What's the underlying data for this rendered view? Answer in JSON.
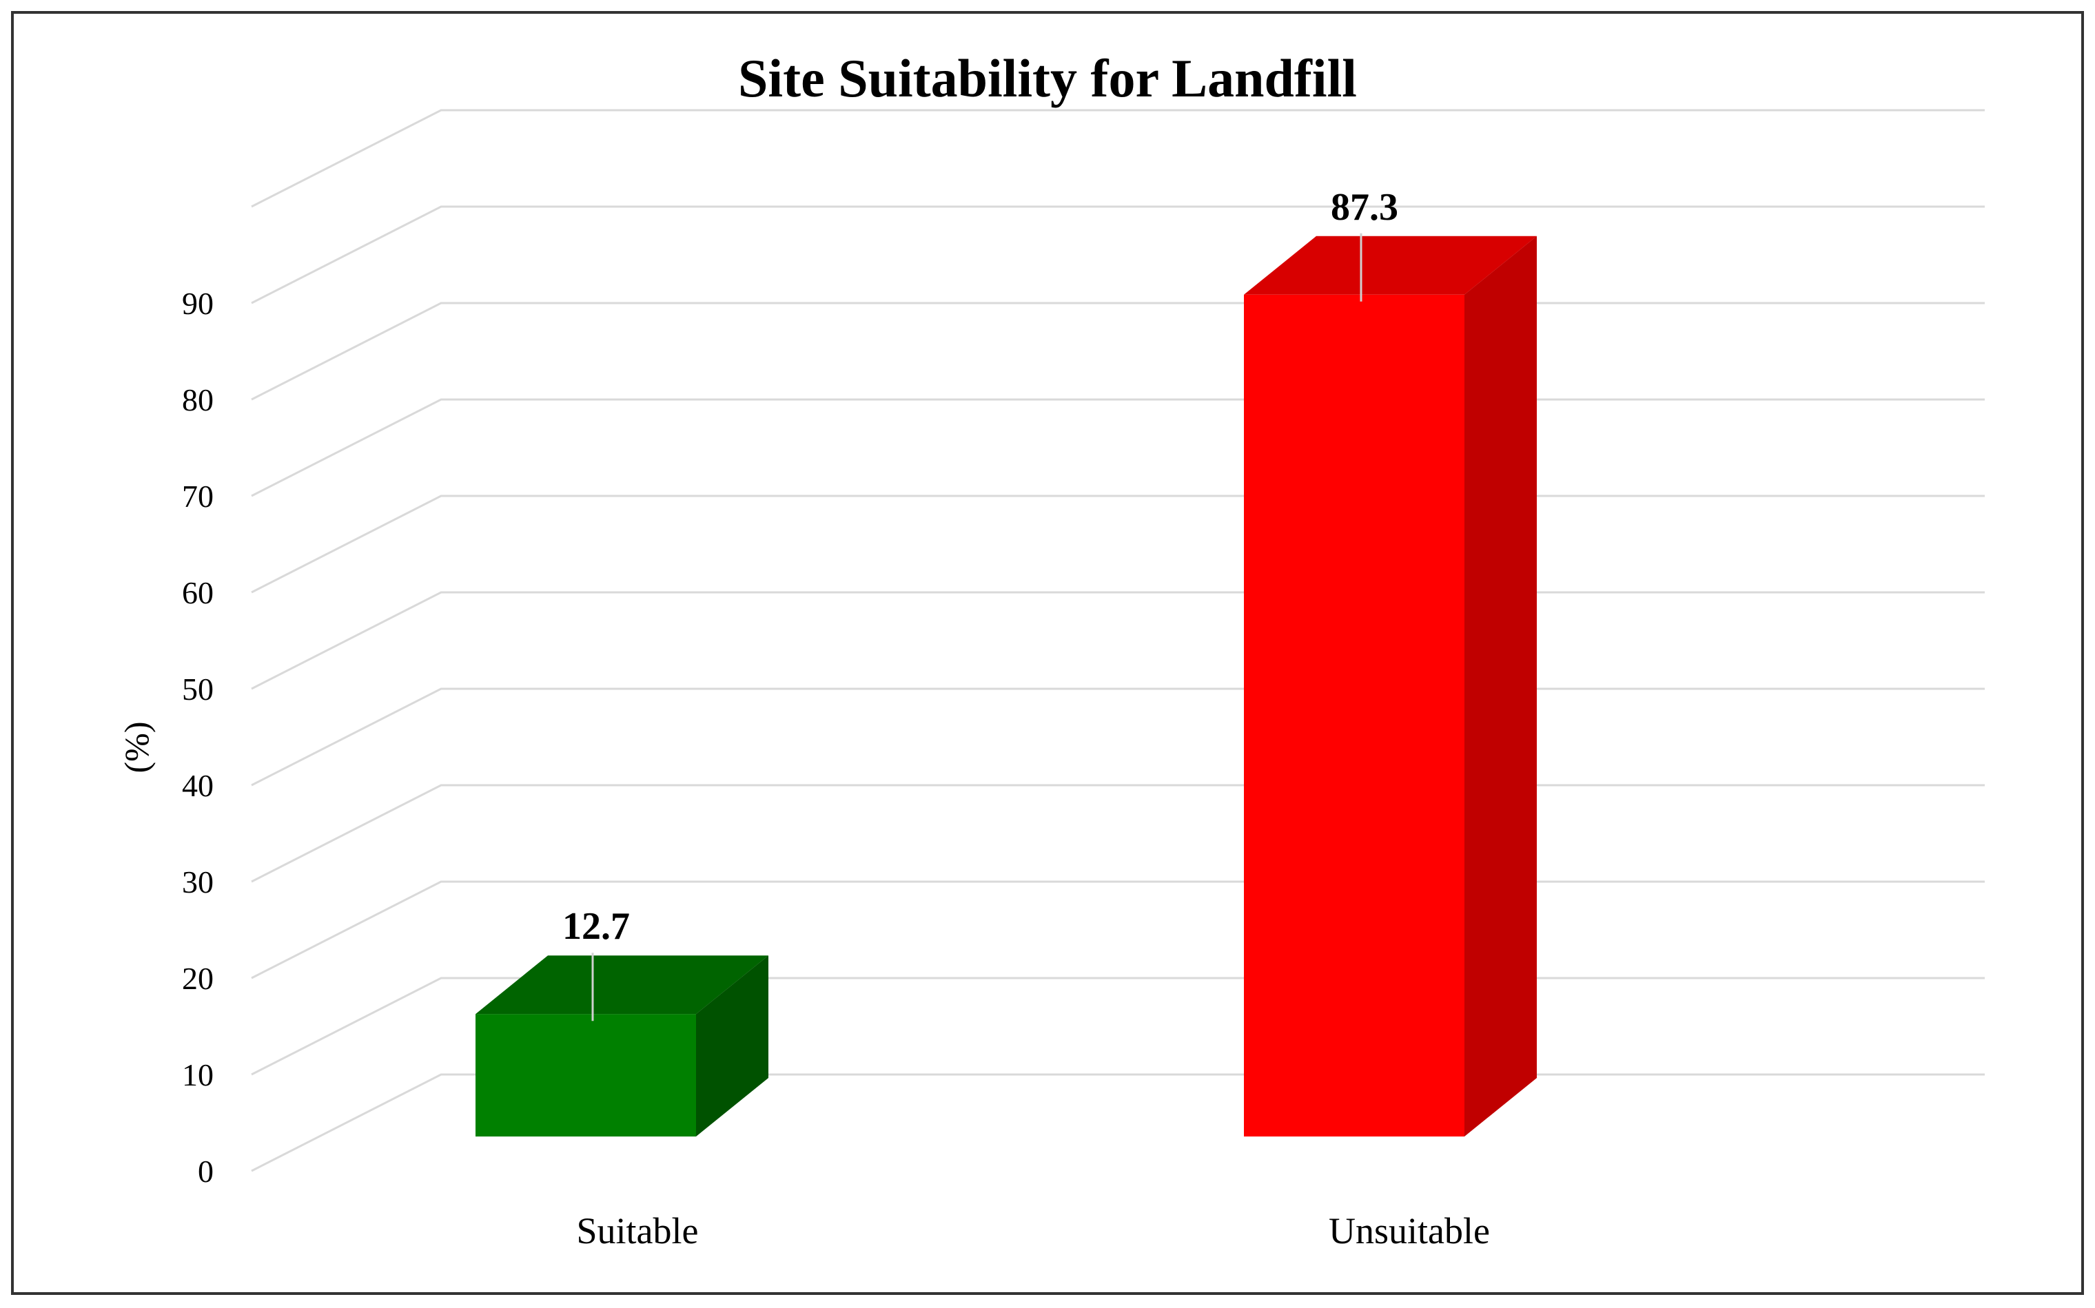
{
  "chart_data": {
    "type": "bar",
    "title": "Site Suitability for Landfill",
    "xlabel": "",
    "ylabel": "(%)",
    "categories": [
      "Suitable",
      "Unsuitable"
    ],
    "values": [
      12.7,
      87.3
    ],
    "data_labels": [
      "12.7",
      "87.3"
    ],
    "yticks": [
      0,
      10,
      20,
      30,
      40,
      50,
      60,
      70,
      80,
      90
    ],
    "ylim": [
      0,
      100
    ],
    "grid": true,
    "legend": "none",
    "style": "3d-column",
    "colors": {
      "Suitable": {
        "front": "#008000",
        "top": "#006400",
        "side": "#005200"
      },
      "Unsuitable": {
        "front": "#ff0000",
        "top": "#d80000",
        "side": "#c00000"
      }
    }
  }
}
